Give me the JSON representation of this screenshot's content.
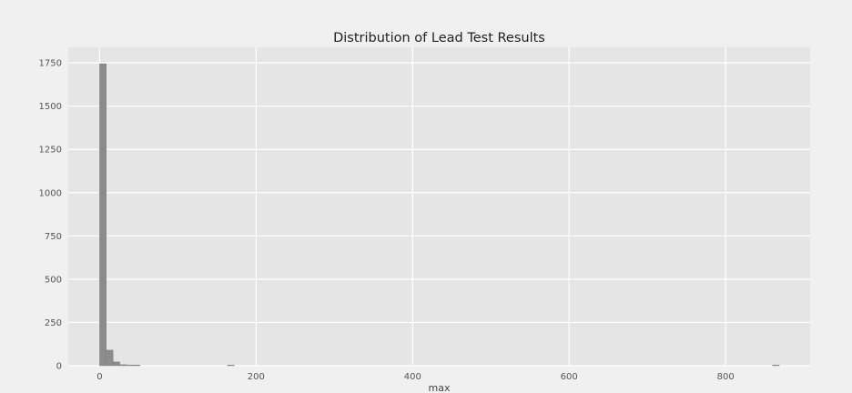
{
  "chart_data": {
    "type": "bar",
    "title": "Distribution of Lead Test Results",
    "xlabel": "max",
    "ylabel": "",
    "xlim": [
      -40,
      908
    ],
    "ylim": [
      0,
      1840
    ],
    "xticks": [
      0,
      200,
      400,
      600,
      800
    ],
    "yticks": [
      0,
      250,
      500,
      750,
      1000,
      1250,
      1500,
      1750
    ],
    "grid": true,
    "bin_width": 8.6,
    "bins": [
      {
        "x0": 0.0,
        "x1": 8.6,
        "count": 1745
      },
      {
        "x0": 8.6,
        "x1": 17.2,
        "count": 90
      },
      {
        "x0": 17.2,
        "x1": 25.8,
        "count": 22
      },
      {
        "x0": 25.8,
        "x1": 34.4,
        "count": 6
      },
      {
        "x0": 34.4,
        "x1": 43.0,
        "count": 4
      },
      {
        "x0": 43.0,
        "x1": 51.6,
        "count": 2
      },
      {
        "x0": 163.4,
        "x1": 172.0,
        "count": 2
      },
      {
        "x0": 860.0,
        "x1": 868.6,
        "count": 1
      }
    ],
    "colors": {
      "bar": "#8c8c8c",
      "plot_bg": "#e5e5e5",
      "figure_bg": "#f0f0f0",
      "grid": "#ffffff"
    }
  }
}
